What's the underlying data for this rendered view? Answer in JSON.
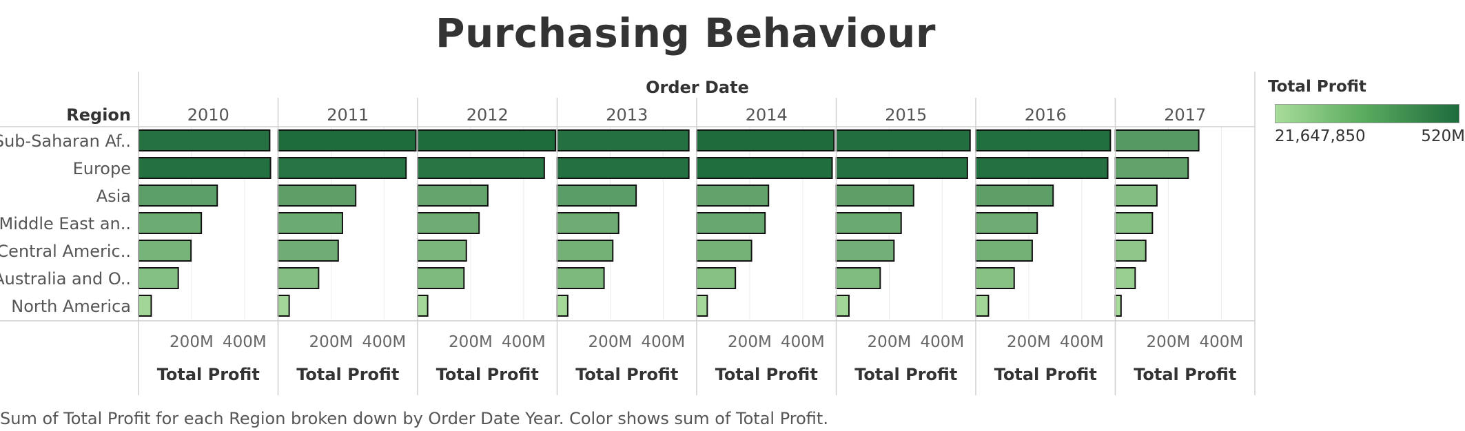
{
  "title": "Purchasing Behaviour",
  "footnote": "Sum of Total Profit for each Region broken down by Order Date Year.  Color shows sum of Total Profit.",
  "legend": {
    "title": "Total Profit",
    "min_label": "21,647,850",
    "max_label": "520M",
    "color_low": "#a8dc9b",
    "color_high": "#1e6b3c"
  },
  "chart_data": {
    "type": "bar",
    "orientation": "horizontal",
    "title": "Purchasing Behaviour",
    "column_header": "Order Date",
    "row_header": "Region",
    "xlabel": "Total Profit",
    "categories": [
      "Sub-Saharan Af..",
      "Europe",
      "Asia",
      "Middle East an..",
      "Central Americ..",
      "Australia and O..",
      "North America"
    ],
    "xlim": [
      0,
      520000000
    ],
    "x_ticks": [
      200000000,
      400000000
    ],
    "x_tick_labels": [
      "200M",
      "400M"
    ],
    "grid": true,
    "legend_position": "top-right",
    "panels": [
      {
        "year": "2010",
        "values": [
          495000000,
          498000000,
          297000000,
          237000000,
          198000000,
          150000000,
          48000000
        ]
      },
      {
        "year": "2011",
        "values": [
          520000000,
          483000000,
          293000000,
          243000000,
          227000000,
          153000000,
          42000000
        ]
      },
      {
        "year": "2012",
        "values": [
          520000000,
          478000000,
          265000000,
          232000000,
          184000000,
          175000000,
          38000000
        ]
      },
      {
        "year": "2013",
        "values": [
          497000000,
          497000000,
          298000000,
          232000000,
          210000000,
          177000000,
          40000000
        ]
      },
      {
        "year": "2014",
        "values": [
          518000000,
          511000000,
          271000000,
          258000000,
          207000000,
          146000000,
          40000000
        ]
      },
      {
        "year": "2015",
        "values": [
          505000000,
          495000000,
          292000000,
          245000000,
          218000000,
          166000000,
          48000000
        ]
      },
      {
        "year": "2016",
        "values": [
          508000000,
          498000000,
          292000000,
          232000000,
          213000000,
          145000000,
          48000000
        ]
      },
      {
        "year": "2017",
        "values": [
          315000000,
          275000000,
          157000000,
          140000000,
          115000000,
          75000000,
          21647850
        ]
      }
    ]
  }
}
